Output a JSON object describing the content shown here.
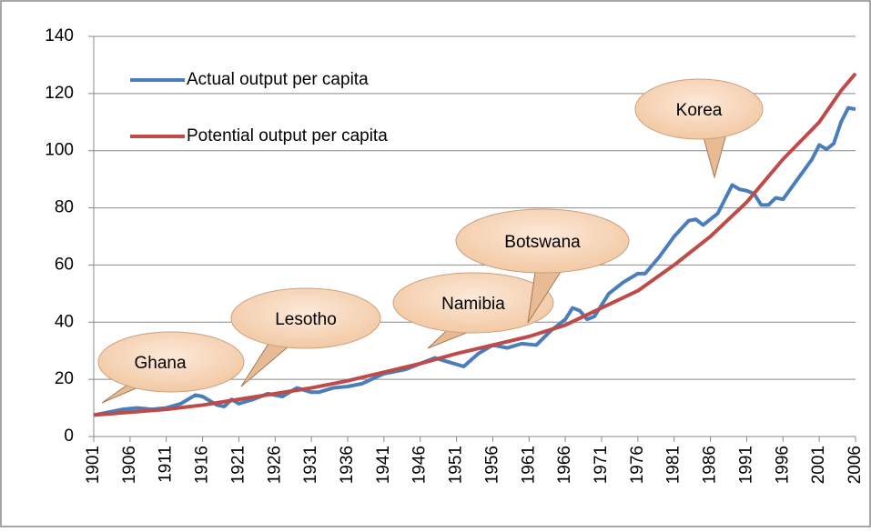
{
  "chart_data": {
    "type": "line",
    "series": [
      {
        "name": "Actual output per capita",
        "color": "#4a7ebb",
        "x": [
          1901,
          1903,
          1905,
          1907,
          1909,
          1911,
          1913,
          1915,
          1916,
          1918,
          1919,
          1920,
          1921,
          1923,
          1925,
          1927,
          1929,
          1931,
          1932,
          1934,
          1936,
          1938,
          1941,
          1944,
          1946,
          1948,
          1950,
          1952,
          1954,
          1956,
          1958,
          1960,
          1962,
          1964,
          1966,
          1967,
          1968,
          1969,
          1970,
          1972,
          1974,
          1976,
          1977,
          1979,
          1981,
          1983,
          1984,
          1985,
          1987,
          1988,
          1989,
          1990,
          1991,
          1992,
          1993,
          1994,
          1995,
          1996,
          1998,
          2000,
          2001,
          2002,
          2003,
          2004,
          2005,
          2006
        ],
        "values": [
          7.5,
          8.5,
          9.5,
          10,
          9.5,
          10,
          11.5,
          14.5,
          14,
          11,
          10.5,
          13,
          11.5,
          13,
          15,
          14,
          17,
          15.5,
          15.5,
          17,
          17.5,
          18.5,
          22,
          23.5,
          25.5,
          27.5,
          26,
          24.5,
          29,
          32,
          31,
          32.5,
          32,
          37,
          41,
          45,
          44,
          41,
          42,
          50,
          54,
          57,
          57,
          63,
          70,
          75.5,
          76,
          74,
          78,
          83,
          88,
          86.5,
          86,
          85,
          81,
          81,
          83.5,
          83,
          90,
          97,
          102,
          100.5,
          102.5,
          110,
          115,
          114.5
        ]
      },
      {
        "name": "Potential output per capita",
        "color": "#be4b48",
        "x": [
          1901,
          1906,
          1911,
          1916,
          1921,
          1926,
          1931,
          1936,
          1941,
          1946,
          1951,
          1956,
          1961,
          1966,
          1971,
          1976,
          1981,
          1986,
          1991,
          1996,
          2001,
          2004,
          2006
        ],
        "values": [
          7.5,
          8.5,
          9.5,
          11,
          13,
          15,
          17,
          19.5,
          22.5,
          25.5,
          29,
          32,
          35,
          39,
          45,
          51,
          60,
          70,
          82,
          97,
          110,
          121,
          127
        ]
      }
    ],
    "xlim": [
      1901,
      2006
    ],
    "xticks": [
      1901,
      1906,
      1911,
      1916,
      1921,
      1926,
      1931,
      1936,
      1941,
      1946,
      1951,
      1956,
      1961,
      1966,
      1971,
      1976,
      1981,
      1986,
      1991,
      1996,
      2001,
      2006
    ],
    "ylim": [
      0,
      140
    ],
    "yticks": [
      0,
      20,
      40,
      60,
      80,
      100,
      120,
      140
    ],
    "grid": true,
    "legend": "upper left",
    "annotations": [
      "Ghana",
      "Lesotho",
      "Namibia",
      "Botswana",
      "Korea"
    ]
  }
}
